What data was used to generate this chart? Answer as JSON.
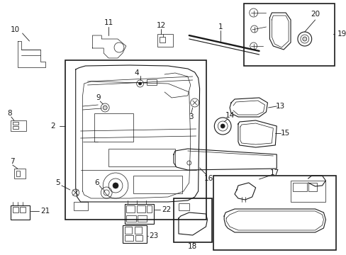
{
  "bg_color": "#ffffff",
  "line_color": "#1a1a1a",
  "fig_width": 4.89,
  "fig_height": 3.6,
  "dpi": 100,
  "label_fs": 7.5,
  "lw_main": 1.2,
  "lw_med": 0.8,
  "lw_thin": 0.5
}
